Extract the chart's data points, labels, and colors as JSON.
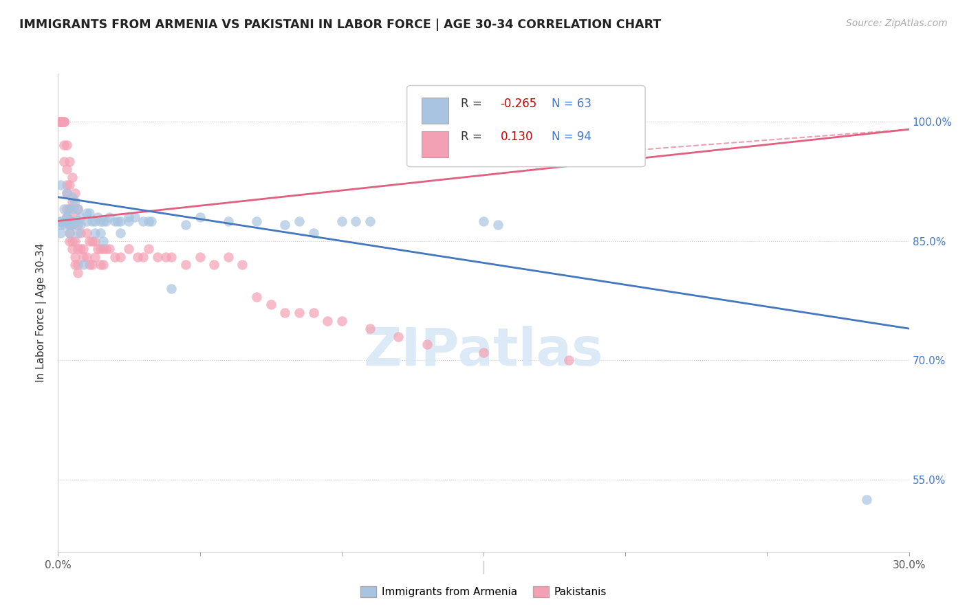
{
  "title": "IMMIGRANTS FROM ARMENIA VS PAKISTANI IN LABOR FORCE | AGE 30-34 CORRELATION CHART",
  "source": "Source: ZipAtlas.com",
  "ylabel": "In Labor Force | Age 30-34",
  "xmin": 0.0,
  "xmax": 0.3,
  "ymin": 0.46,
  "ymax": 1.06,
  "yticks": [
    0.55,
    0.7,
    0.85,
    1.0
  ],
  "ytick_labels": [
    "55.0%",
    "70.0%",
    "85.0%",
    "100.0%"
  ],
  "xticks": [
    0.0,
    0.05,
    0.1,
    0.15,
    0.2,
    0.25,
    0.3
  ],
  "xtick_labels": [
    "0.0%",
    "",
    "",
    "",
    "",
    "",
    "30.0%"
  ],
  "legend_r_armenia": "-0.265",
  "legend_n_armenia": "63",
  "legend_r_pakistani": "0.130",
  "legend_n_pakistani": "94",
  "armenia_color": "#a8c4e0",
  "pakistani_color": "#f4a0b4",
  "trendline_armenia_color": "#4477bb",
  "trendline_pakistani_color": "#e06080",
  "watermark": "ZIPatlas",
  "armenia_scatter": [
    [
      0.001,
      0.875
    ],
    [
      0.001,
      0.92
    ],
    [
      0.001,
      0.87
    ],
    [
      0.001,
      0.875
    ],
    [
      0.001,
      0.86
    ],
    [
      0.002,
      0.89
    ],
    [
      0.002,
      0.87
    ],
    [
      0.002,
      0.875
    ],
    [
      0.002,
      0.875
    ],
    [
      0.003,
      0.91
    ],
    [
      0.003,
      0.88
    ],
    [
      0.003,
      0.88
    ],
    [
      0.004,
      0.87
    ],
    [
      0.004,
      0.86
    ],
    [
      0.004,
      0.89
    ],
    [
      0.005,
      0.875
    ],
    [
      0.005,
      0.89
    ],
    [
      0.005,
      0.87
    ],
    [
      0.005,
      0.905
    ],
    [
      0.006,
      0.875
    ],
    [
      0.006,
      0.9
    ],
    [
      0.007,
      0.89
    ],
    [
      0.007,
      0.86
    ],
    [
      0.007,
      0.875
    ],
    [
      0.008,
      0.88
    ],
    [
      0.008,
      0.87
    ],
    [
      0.009,
      0.82
    ],
    [
      0.01,
      0.875
    ],
    [
      0.01,
      0.885
    ],
    [
      0.011,
      0.885
    ],
    [
      0.012,
      0.875
    ],
    [
      0.013,
      0.86
    ],
    [
      0.013,
      0.875
    ],
    [
      0.014,
      0.88
    ],
    [
      0.015,
      0.875
    ],
    [
      0.015,
      0.86
    ],
    [
      0.016,
      0.85
    ],
    [
      0.016,
      0.875
    ],
    [
      0.017,
      0.875
    ],
    [
      0.018,
      0.88
    ],
    [
      0.02,
      0.875
    ],
    [
      0.021,
      0.875
    ],
    [
      0.022,
      0.875
    ],
    [
      0.022,
      0.86
    ],
    [
      0.025,
      0.88
    ],
    [
      0.025,
      0.875
    ],
    [
      0.027,
      0.88
    ],
    [
      0.03,
      0.875
    ],
    [
      0.032,
      0.875
    ],
    [
      0.033,
      0.875
    ],
    [
      0.04,
      0.79
    ],
    [
      0.045,
      0.87
    ],
    [
      0.05,
      0.88
    ],
    [
      0.06,
      0.875
    ],
    [
      0.07,
      0.875
    ],
    [
      0.08,
      0.87
    ],
    [
      0.085,
      0.875
    ],
    [
      0.09,
      0.86
    ],
    [
      0.1,
      0.875
    ],
    [
      0.105,
      0.875
    ],
    [
      0.11,
      0.875
    ],
    [
      0.15,
      0.875
    ],
    [
      0.155,
      0.87
    ],
    [
      0.285,
      0.525
    ]
  ],
  "pakistani_scatter": [
    [
      0.001,
      1.0
    ],
    [
      0.001,
      1.0
    ],
    [
      0.001,
      1.0
    ],
    [
      0.001,
      1.0
    ],
    [
      0.001,
      1.0
    ],
    [
      0.001,
      1.0
    ],
    [
      0.001,
      1.0
    ],
    [
      0.001,
      1.0
    ],
    [
      0.001,
      1.0
    ],
    [
      0.001,
      1.0
    ],
    [
      0.001,
      1.0
    ],
    [
      0.001,
      1.0
    ],
    [
      0.001,
      1.0
    ],
    [
      0.001,
      1.0
    ],
    [
      0.001,
      1.0
    ],
    [
      0.002,
      1.0
    ],
    [
      0.002,
      1.0
    ],
    [
      0.002,
      1.0
    ],
    [
      0.002,
      0.97
    ],
    [
      0.002,
      0.95
    ],
    [
      0.003,
      0.97
    ],
    [
      0.003,
      0.94
    ],
    [
      0.003,
      0.92
    ],
    [
      0.003,
      0.91
    ],
    [
      0.003,
      0.89
    ],
    [
      0.003,
      0.88
    ],
    [
      0.004,
      0.95
    ],
    [
      0.004,
      0.92
    ],
    [
      0.004,
      0.89
    ],
    [
      0.004,
      0.87
    ],
    [
      0.004,
      0.86
    ],
    [
      0.004,
      0.85
    ],
    [
      0.005,
      0.93
    ],
    [
      0.005,
      0.9
    ],
    [
      0.005,
      0.87
    ],
    [
      0.005,
      0.85
    ],
    [
      0.005,
      0.84
    ],
    [
      0.006,
      0.91
    ],
    [
      0.006,
      0.88
    ],
    [
      0.006,
      0.85
    ],
    [
      0.006,
      0.83
    ],
    [
      0.006,
      0.82
    ],
    [
      0.007,
      0.89
    ],
    [
      0.007,
      0.87
    ],
    [
      0.007,
      0.84
    ],
    [
      0.007,
      0.82
    ],
    [
      0.007,
      0.81
    ],
    [
      0.008,
      0.86
    ],
    [
      0.008,
      0.84
    ],
    [
      0.009,
      0.84
    ],
    [
      0.009,
      0.83
    ],
    [
      0.01,
      0.86
    ],
    [
      0.01,
      0.83
    ],
    [
      0.011,
      0.85
    ],
    [
      0.011,
      0.82
    ],
    [
      0.012,
      0.85
    ],
    [
      0.012,
      0.82
    ],
    [
      0.013,
      0.85
    ],
    [
      0.013,
      0.83
    ],
    [
      0.014,
      0.84
    ],
    [
      0.015,
      0.84
    ],
    [
      0.015,
      0.82
    ],
    [
      0.016,
      0.84
    ],
    [
      0.016,
      0.82
    ],
    [
      0.017,
      0.84
    ],
    [
      0.018,
      0.84
    ],
    [
      0.02,
      0.83
    ],
    [
      0.022,
      0.83
    ],
    [
      0.025,
      0.84
    ],
    [
      0.028,
      0.83
    ],
    [
      0.03,
      0.83
    ],
    [
      0.032,
      0.84
    ],
    [
      0.035,
      0.83
    ],
    [
      0.038,
      0.83
    ],
    [
      0.04,
      0.83
    ],
    [
      0.045,
      0.82
    ],
    [
      0.05,
      0.83
    ],
    [
      0.055,
      0.82
    ],
    [
      0.06,
      0.83
    ],
    [
      0.065,
      0.82
    ],
    [
      0.07,
      0.78
    ],
    [
      0.075,
      0.77
    ],
    [
      0.08,
      0.76
    ],
    [
      0.085,
      0.76
    ],
    [
      0.09,
      0.76
    ],
    [
      0.095,
      0.75
    ],
    [
      0.1,
      0.75
    ],
    [
      0.11,
      0.74
    ],
    [
      0.12,
      0.73
    ],
    [
      0.13,
      0.72
    ],
    [
      0.15,
      0.71
    ],
    [
      0.18,
      0.7
    ]
  ],
  "armenia_trend_x": [
    0.0,
    0.3
  ],
  "armenia_trend_y": [
    0.905,
    0.74
  ],
  "pakistani_trend_x": [
    0.0,
    0.3
  ],
  "pakistani_trend_y": [
    0.875,
    0.99
  ]
}
